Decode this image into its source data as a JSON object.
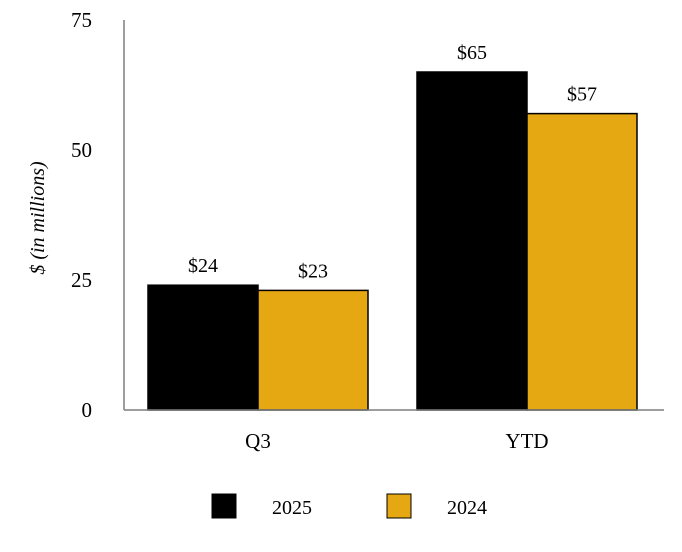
{
  "chart_data": {
    "type": "bar",
    "categories": [
      "Q3",
      "YTD"
    ],
    "series": [
      {
        "name": "2025",
        "values": [
          24,
          65
        ],
        "labels": [
          "$24",
          "$65"
        ],
        "color": "#000000"
      },
      {
        "name": "2024",
        "values": [
          23,
          57
        ],
        "labels": [
          "$23",
          "$57"
        ],
        "color": "#E5A712"
      }
    ],
    "ylabel": "$ (in millions)",
    "ylim": [
      0,
      75
    ],
    "yticks": [
      "0",
      "25",
      "50",
      "75"
    ],
    "ytick_values": [
      0,
      25,
      50,
      75
    ],
    "grid": false,
    "legend_position": "bottom"
  }
}
